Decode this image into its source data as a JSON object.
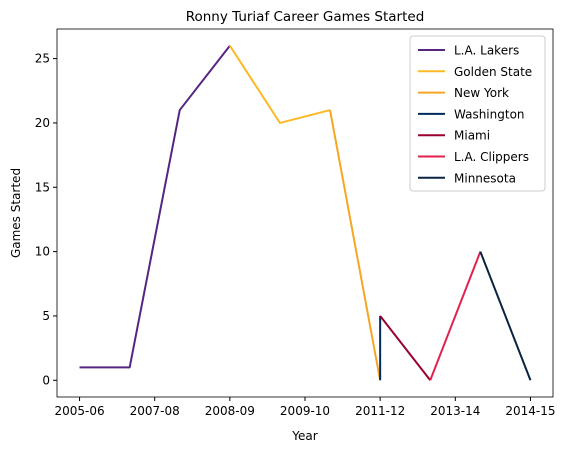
{
  "chart_data": {
    "type": "line",
    "title": "Ronny Turiaf Career Games Started",
    "xlabel": "Year",
    "ylabel": "Games Started",
    "xlim": [
      -0.45,
      9.45
    ],
    "xticks": [
      {
        "value": 0,
        "label": "2005-06"
      },
      {
        "value": 1.5,
        "label": "2007-08"
      },
      {
        "value": 3,
        "label": "2008-09"
      },
      {
        "value": 4.5,
        "label": "2009-10"
      },
      {
        "value": 6,
        "label": "2011-12"
      },
      {
        "value": 7.5,
        "label": "2013-14"
      },
      {
        "value": 9,
        "label": "2014-15"
      }
    ],
    "ylim": [
      -1.3,
      27.3
    ],
    "yticks": [
      0,
      5,
      10,
      15,
      20,
      25
    ],
    "legend": "upper right",
    "series": [
      {
        "name": "L.A. Lakers",
        "color": "#552583",
        "x": [
          0,
          1,
          2,
          3
        ],
        "values": [
          1,
          1,
          21,
          26
        ]
      },
      {
        "name": "Golden State",
        "color": "#FDB927",
        "x": [
          3,
          4,
          5
        ],
        "values": [
          26,
          20,
          21
        ]
      },
      {
        "name": "New York",
        "color": "#F5A623",
        "x": [
          5,
          6
        ],
        "values": [
          21,
          0
        ]
      },
      {
        "name": "Washington",
        "color": "#002B5C",
        "x": [
          6,
          6
        ],
        "values": [
          0,
          5
        ]
      },
      {
        "name": "Miami",
        "color": "#98002E",
        "x": [
          6,
          7
        ],
        "values": [
          5,
          0
        ]
      },
      {
        "name": "L.A. Clippers",
        "color": "#E0234E",
        "x": [
          7,
          8
        ],
        "values": [
          0,
          10
        ]
      },
      {
        "name": "Minnesota",
        "color": "#0C2340",
        "x": [
          8,
          9
        ],
        "values": [
          10,
          0
        ]
      }
    ]
  }
}
